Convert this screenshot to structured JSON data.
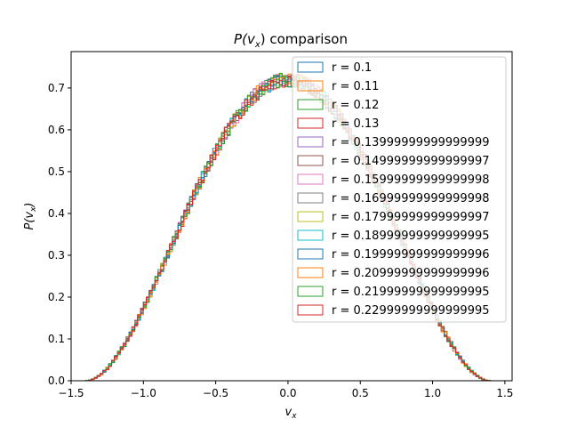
{
  "chart_data": {
    "type": "histogram-step",
    "title_main": "P(v",
    "title_sub": "x",
    "title_rest": ") comparison",
    "xlabel_main": "v",
    "xlabel_sub": "x",
    "ylabel_main": "P(v",
    "ylabel_sub": "x",
    "ylabel_rest": ")",
    "xlim": [
      -1.5,
      1.55
    ],
    "ylim": [
      0,
      0.787
    ],
    "x_ticks": [
      -1.5,
      -1.0,
      -0.5,
      0.0,
      0.5,
      1.0,
      1.5
    ],
    "x_tick_labels": [
      "−1.5",
      "−1.0",
      "−0.5",
      "0.0",
      "0.5",
      "1.0",
      "1.5"
    ],
    "y_ticks": [
      0.0,
      0.1,
      0.2,
      0.3,
      0.4,
      0.5,
      0.6,
      0.7
    ],
    "y_tick_labels": [
      "0.0",
      "0.1",
      "0.2",
      "0.3",
      "0.4",
      "0.5",
      "0.6",
      "0.7"
    ],
    "grid": false,
    "legend_position": "upper-right",
    "distribution": {
      "support": [
        -1.4,
        1.4
      ],
      "peak": 0.72,
      "shape": "0.72 * (1 - (v/1.4)^2)^2",
      "bins_per_series": 140
    },
    "series": [
      {
        "name": "r = 0.1",
        "color": "#1f77b4"
      },
      {
        "name": "r = 0.11",
        "color": "#ff7f0e"
      },
      {
        "name": "r = 0.12",
        "color": "#2ca02c"
      },
      {
        "name": "r = 0.13",
        "color": "#d62728"
      },
      {
        "name": "r = 0.13999999999999999",
        "color": "#9467bd"
      },
      {
        "name": "r = 0.14999999999999997",
        "color": "#8c564b"
      },
      {
        "name": "r = 0.15999999999999998",
        "color": "#e377c2"
      },
      {
        "name": "r = 0.16999999999999998",
        "color": "#7f7f7f"
      },
      {
        "name": "r = 0.17999999999999997",
        "color": "#bcbd22"
      },
      {
        "name": "r = 0.18999999999999995",
        "color": "#17becf"
      },
      {
        "name": "r = 0.19999999999999996",
        "color": "#1f77b4"
      },
      {
        "name": "r = 0.20999999999999996",
        "color": "#ff7f0e"
      },
      {
        "name": "r = 0.21999999999999995",
        "color": "#2ca02c"
      },
      {
        "name": "r = 0.22999999999999995",
        "color": "#d62728"
      }
    ]
  }
}
